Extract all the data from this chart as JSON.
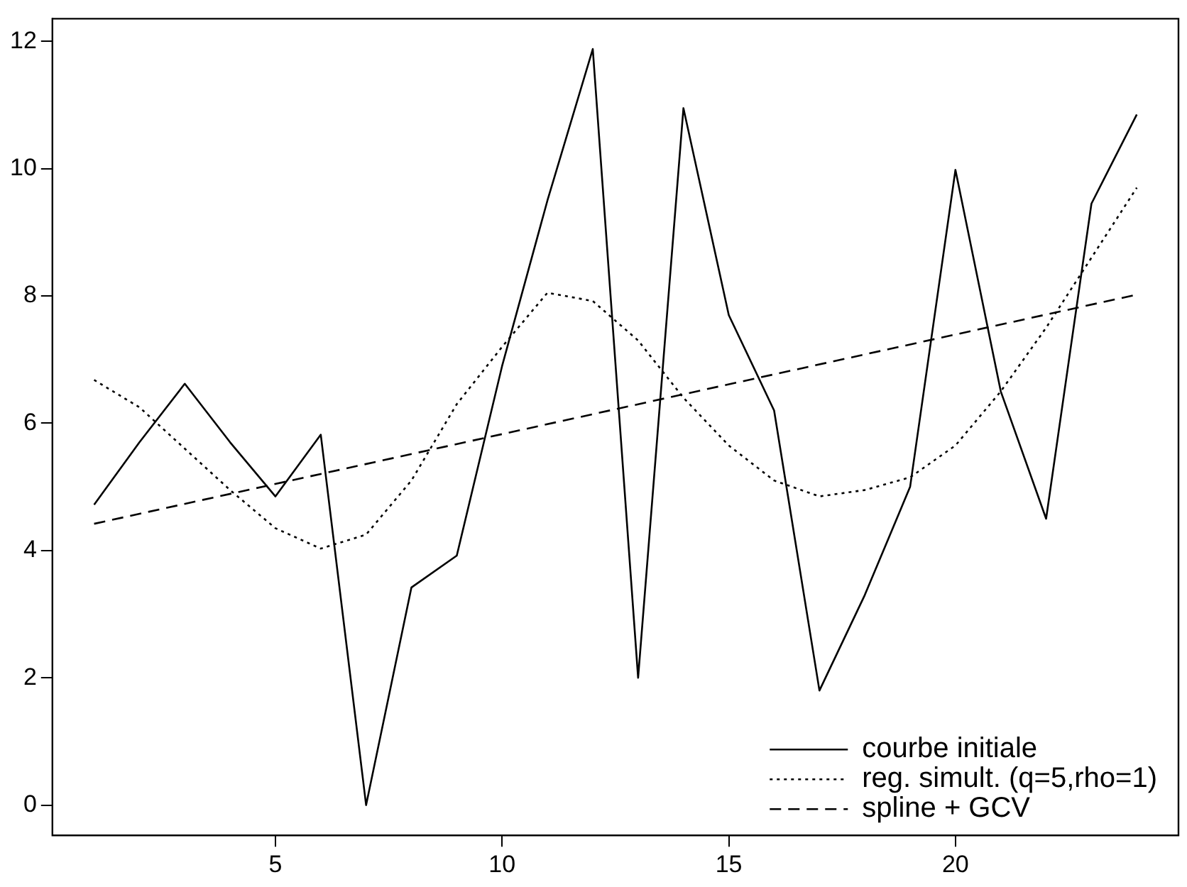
{
  "chart_data": {
    "type": "line",
    "x": [
      1,
      2,
      3,
      4,
      5,
      6,
      7,
      8,
      9,
      10,
      11,
      12,
      13,
      14,
      15,
      16,
      17,
      18,
      19,
      20,
      21,
      22,
      23,
      24
    ],
    "series": [
      {
        "name": "courbe initiale",
        "color": "#000000",
        "line_style": "solid",
        "values": [
          4.72,
          5.7,
          6.62,
          5.7,
          4.85,
          5.82,
          0.0,
          3.42,
          3.92,
          6.9,
          9.5,
          11.88,
          2.0,
          10.95,
          7.7,
          6.2,
          1.8,
          3.3,
          5.0,
          9.98,
          6.5,
          4.5,
          9.45,
          10.85
        ]
      },
      {
        "name": "reg. simult. (q=5,rho=1)",
        "color": "#000000",
        "line_style": "dotted",
        "values": [
          6.68,
          6.25,
          5.6,
          4.95,
          4.35,
          4.03,
          4.25,
          5.1,
          6.3,
          7.2,
          8.05,
          7.92,
          7.3,
          6.4,
          5.65,
          5.1,
          4.85,
          4.95,
          5.15,
          5.65,
          6.5,
          7.5,
          8.6,
          9.7
        ]
      },
      {
        "name": "spline + GCV",
        "color": "#000000",
        "line_style": "dashed",
        "x": [
          1,
          24
        ],
        "values": [
          4.42,
          8.02
        ]
      }
    ],
    "xlim": [
      0.08,
      24.92
    ],
    "ylim": [
      -0.475,
      12.355
    ],
    "xticks": [
      5,
      10,
      15,
      20
    ],
    "yticks": [
      0,
      2,
      4,
      6,
      8,
      10,
      12
    ],
    "grid": false,
    "legend": "bottom right",
    "marker": "none"
  }
}
